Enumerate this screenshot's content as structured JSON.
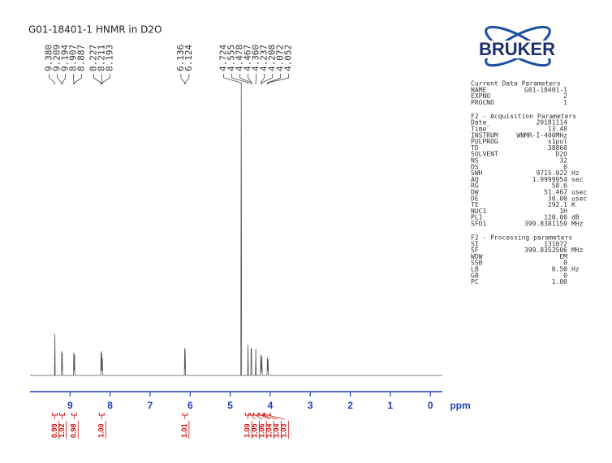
{
  "chart_data": {
    "type": "spectrum",
    "title": "G01-18401-1 HNMR in D2O",
    "xlabel": "ppm",
    "xlim": [
      10,
      -0.3
    ],
    "xticks": [
      9,
      8,
      7,
      6,
      5,
      4,
      3,
      2,
      1,
      0
    ],
    "ylim": [
      0,
      370
    ],
    "color": "#555555",
    "axis_color": "#1f3fbf",
    "integral_color": "#d01010",
    "x": [
      10,
      9.39,
      9.38,
      9.37,
      9.215,
      9.209,
      9.201,
      9.194,
      9.187,
      8.915,
      8.907,
      8.897,
      8.887,
      8.879,
      8.235,
      8.227,
      8.219,
      8.211,
      8.202,
      8.193,
      8.185,
      6.145,
      6.136,
      6.13,
      6.124,
      6.115,
      4.735,
      4.724,
      4.713,
      4.565,
      4.555,
      4.545,
      4.485,
      4.478,
      4.472,
      4.467,
      4.46,
      4.37,
      4.36,
      4.35,
      4.245,
      4.237,
      4.222,
      4.208,
      4.2,
      4.08,
      4.072,
      4.062,
      4.052,
      4.044,
      -0.3
    ],
    "values": [
      0,
      0,
      51,
      0,
      0,
      30,
      6,
      28,
      0,
      0,
      28,
      6,
      26,
      0,
      0,
      28,
      6,
      30,
      6,
      22,
      0,
      0,
      34,
      8,
      32,
      0,
      0,
      360,
      0,
      0,
      38,
      0,
      0,
      34,
      12,
      33,
      0,
      0,
      33,
      0,
      0,
      26,
      4,
      24,
      0,
      0,
      22,
      6,
      20,
      0,
      0
    ],
    "peak_labels": [
      {
        "value": 9.38,
        "label": "9.380"
      },
      {
        "value": 9.209,
        "label": "9.209"
      },
      {
        "value": 9.194,
        "label": "9.194"
      },
      {
        "value": 8.907,
        "label": "8.907"
      },
      {
        "value": 8.887,
        "label": "8.887"
      },
      {
        "value": 8.227,
        "label": "8.227"
      },
      {
        "value": 8.211,
        "label": "8.211"
      },
      {
        "value": 8.193,
        "label": "8.193"
      },
      {
        "value": 6.136,
        "label": "6.136"
      },
      {
        "value": 6.124,
        "label": "6.124"
      },
      {
        "value": 4.724,
        "label": "4.724"
      },
      {
        "value": 4.555,
        "label": "4.555"
      },
      {
        "value": 4.478,
        "label": "4.478"
      },
      {
        "value": 4.467,
        "label": "4.467"
      },
      {
        "value": 4.36,
        "label": "4.360"
      },
      {
        "value": 4.237,
        "label": "4.237"
      },
      {
        "value": 4.208,
        "label": "4.208"
      },
      {
        "value": 4.072,
        "label": "4.072"
      },
      {
        "value": 4.052,
        "label": "4.052"
      }
    ],
    "integrals": {
      "x": [
        9.38,
        9.2,
        8.9,
        8.21,
        6.13,
        4.56,
        4.47,
        4.36,
        4.24,
        4.21,
        4.06
      ],
      "values": [
        0.99,
        1.02,
        0.98,
        1,
        1.01,
        1.09,
        1.05,
        1.06,
        1.04,
        1.04,
        1.03
      ],
      "value_labels": [
        "0.99",
        "1.02",
        "0.98",
        "1.00",
        "1.01",
        "1.09",
        "1.05",
        "1.06",
        "1.04",
        "1.04",
        "1.03"
      ]
    }
  },
  "logo": "BRUKER",
  "parameter_sections": [
    {
      "title": "Current Data Parameters",
      "rows": [
        [
          "NAME",
          "G01-18401-1"
        ],
        [
          "EXPNO",
          "2"
        ],
        [
          "PROCNO",
          "1"
        ]
      ]
    },
    {
      "title": "F2 - Acquisition Parameters",
      "rows": [
        [
          "Date_",
          "20181114"
        ],
        [
          "Time",
          "13.48"
        ],
        [
          "INSTRUM",
          "WNMR-I-400MHz"
        ],
        [
          "PULPROG",
          "s1pul"
        ],
        [
          "TD",
          "38860"
        ],
        [
          "SOLVENT",
          "D2O"
        ],
        [
          "NS",
          "32"
        ],
        [
          "DS",
          "0"
        ],
        [
          "SWH",
          "9715.022",
          "Hz"
        ],
        [
          "AQ",
          "1.9999954",
          "sec"
        ],
        [
          "RG",
          "58.6"
        ],
        [
          "DW",
          "51.467",
          "usec"
        ],
        [
          "DE",
          "30.00",
          "usec"
        ],
        [
          "TE",
          "292.1",
          "K"
        ],
        [
          "NUC1",
          "1H"
        ],
        [
          "PL1",
          "120.00",
          "dB"
        ],
        [
          "SFO1",
          "399.8381159",
          "MHz"
        ]
      ]
    },
    {
      "title": "F2 - Processing parameters",
      "rows": [
        [
          "SI",
          "131072"
        ],
        [
          "SF",
          "399.8352506",
          "MHz"
        ],
        [
          "WDW",
          "EM"
        ],
        [
          "SSB",
          "0"
        ],
        [
          "LB",
          "0.50",
          "Hz"
        ],
        [
          "GB",
          "0"
        ],
        [
          "PC",
          "1.00"
        ]
      ]
    }
  ]
}
